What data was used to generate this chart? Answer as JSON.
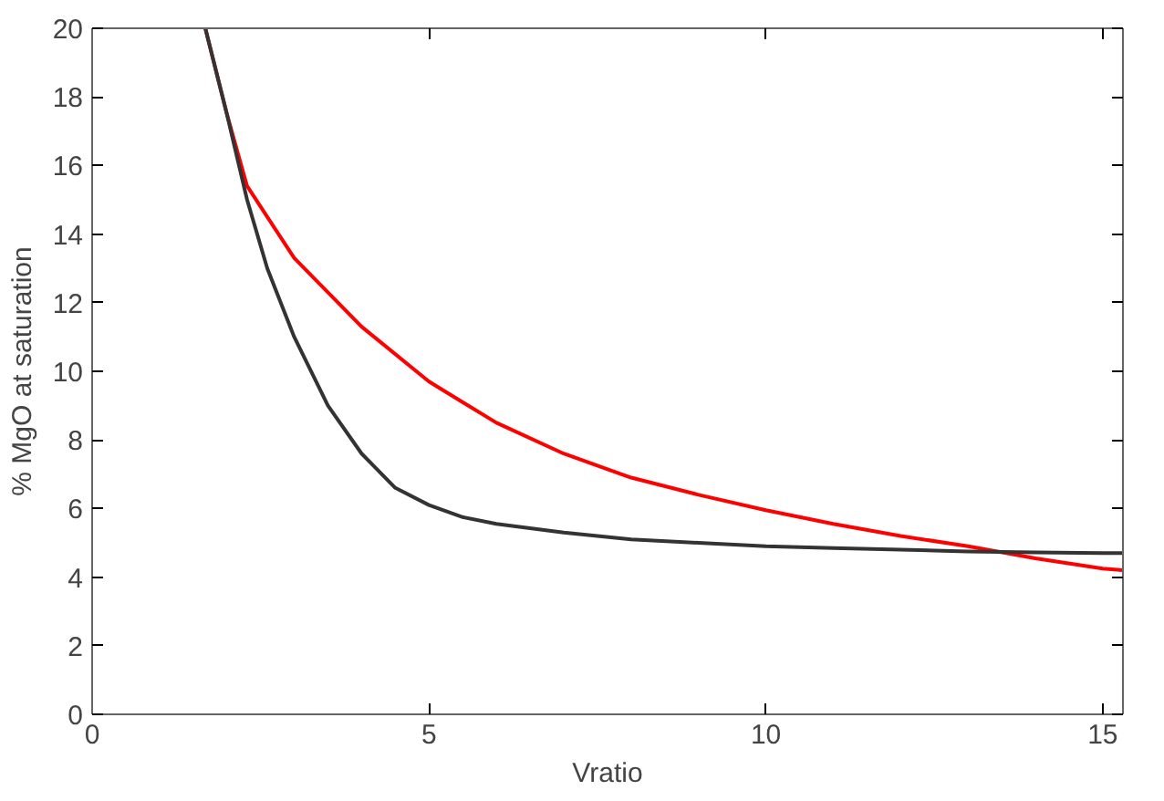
{
  "chart_data": {
    "type": "line",
    "xlabel": "Vratio",
    "ylabel": "% MgO at saturation",
    "xlim": [
      0,
      15.3
    ],
    "xticks": [
      0,
      5,
      10,
      15
    ],
    "ylim": [
      0,
      20
    ],
    "yticks": [
      0,
      2,
      4,
      6,
      8,
      10,
      12,
      14,
      16,
      18,
      20
    ],
    "grid": false,
    "line_style": "solid",
    "series": [
      {
        "color": "#ff0000",
        "x": [
          1.68,
          2.0,
          2.3,
          3,
          4,
          5,
          6,
          7,
          8,
          9,
          10,
          11,
          12,
          13,
          14,
          15,
          15.3
        ],
        "values": [
          20,
          17.5,
          15.4,
          13.3,
          11.3,
          9.7,
          8.5,
          7.6,
          6.9,
          6.4,
          5.95,
          5.55,
          5.2,
          4.9,
          4.55,
          4.25,
          4.2
        ]
      },
      {
        "color": "#333333",
        "x": [
          1.68,
          2.0,
          2.3,
          2.6,
          3,
          3.5,
          4,
          4.5,
          5,
          5.5,
          6,
          7,
          8,
          9,
          10,
          11,
          12,
          13,
          14,
          15,
          15.3
        ],
        "values": [
          20,
          17.5,
          15,
          13,
          11,
          9,
          7.6,
          6.6,
          6.1,
          5.75,
          5.55,
          5.3,
          5.1,
          5.0,
          4.9,
          4.85,
          4.8,
          4.75,
          4.72,
          4.7,
          4.7
        ]
      }
    ]
  }
}
